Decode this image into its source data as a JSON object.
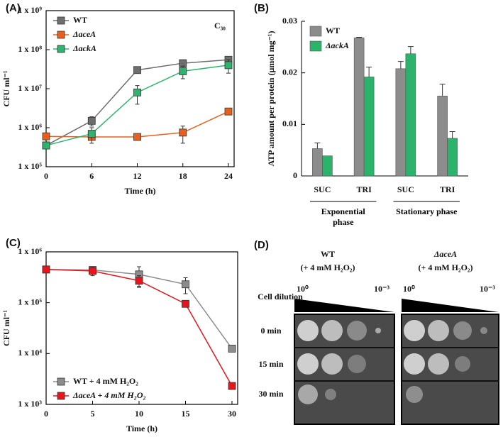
{
  "chart_data": [
    {
      "type": "line",
      "panel": "(A)",
      "xlabel": "Time (h)",
      "ylabel": "CFU ml⁻¹",
      "annotation": "C₃₀",
      "x": [
        0,
        6,
        12,
        18,
        24
      ],
      "xlim": [
        0,
        24
      ],
      "xticks": [
        0,
        6,
        12,
        18,
        24
      ],
      "log_scale": true,
      "ylim": [
        100000,
        1000000000
      ],
      "yticks": [
        {
          "value": 100000,
          "label": "1 x 10⁵"
        },
        {
          "value": 1000000,
          "label": "1 x 10⁶"
        },
        {
          "value": 10000000,
          "label": "1 x 10⁷"
        },
        {
          "value": 100000000,
          "label": "1 x 10⁸"
        },
        {
          "value": 1000000000,
          "label": "1 x 10⁹"
        }
      ],
      "legend": "upper left",
      "series": [
        {
          "name": "WT",
          "color": "#6e6e6e",
          "values": [
            350000,
            1500000,
            30000000,
            45000000,
            55000000
          ],
          "errors": [
            null,
            400000,
            null,
            null,
            null
          ]
        },
        {
          "name": "ΔaceA",
          "color": "#e8601c",
          "values": [
            600000,
            580000,
            580000,
            750000,
            2600000
          ],
          "errors": [
            100000,
            null,
            null,
            350000,
            400000
          ]
        },
        {
          "name": "ΔackA",
          "color": "#2db56e",
          "values": [
            350000,
            700000,
            8000000,
            28000000,
            40000000
          ],
          "errors": [
            null,
            300000,
            4000000,
            10000000,
            15000000
          ]
        }
      ]
    },
    {
      "type": "bar",
      "panel": "(B)",
      "ylabel": "ATP amount per protein (μmol mg⁻¹)",
      "categories": [
        "SUC",
        "TRI",
        "SUC",
        "TRI"
      ],
      "groups": [
        "Exponential phase",
        "Stationary phase"
      ],
      "ylim": [
        0,
        0.03
      ],
      "yticks": [
        0,
        0.01,
        0.02,
        0.03
      ],
      "legend": "upper left",
      "series": [
        {
          "name": "WT",
          "color": "#8c8c8c",
          "values": [
            0.0053,
            0.0268,
            0.0208,
            0.0155
          ],
          "errors": [
            0.0011,
            0.0001,
            0.0014,
            0.0023
          ]
        },
        {
          "name": "ΔackA",
          "color": "#2bb36b",
          "values": [
            0.0039,
            0.0192,
            0.0237,
            0.0073
          ],
          "errors": [
            null,
            0.0019,
            0.0014,
            0.0013
          ]
        }
      ]
    },
    {
      "type": "line",
      "panel": "(C)",
      "xlabel": "Time (h)",
      "ylabel": "CFU ml⁻¹",
      "categories": [
        "0",
        "5",
        "10",
        "15",
        "30"
      ],
      "log_scale": true,
      "ylim": [
        1000,
        1000000
      ],
      "yticks": [
        {
          "value": 1000,
          "label": "1 x 10³"
        },
        {
          "value": 10000,
          "label": "1 x 10⁴"
        },
        {
          "value": 100000,
          "label": "1 x 10⁵"
        },
        {
          "value": 1000000,
          "label": "1 x 10⁶"
        }
      ],
      "legend": "lower left",
      "series": [
        {
          "name": "WT + 4 mM H₂O₂",
          "color": "#8c8c8c",
          "values": [
            450000,
            440000,
            360000,
            230000,
            12500
          ],
          "errors": [
            null,
            null,
            150000,
            80000,
            null
          ]
        },
        {
          "name": "ΔaceA + 4 mM H₂O₂",
          "color": "#e8141b",
          "values": [
            450000,
            420000,
            270000,
            95000,
            2300
          ],
          "errors": [
            null,
            80000,
            70000,
            null,
            null
          ]
        }
      ]
    }
  ],
  "panel_d": {
    "label": "(D)",
    "row_header": "Cell dilution",
    "rows": [
      "0 min",
      "15 min",
      "30 min"
    ],
    "plates": [
      {
        "strain": "WT",
        "treatment": "(+ 4 mM H₂O₂)",
        "dilution_start": "10⁰",
        "dilution_end": "10⁻³"
      },
      {
        "strain": "ΔaceA",
        "treatment": "(+ 4 mM H₂O₂)",
        "dilution_start": "10⁰",
        "dilution_end": "10⁻³"
      }
    ]
  }
}
